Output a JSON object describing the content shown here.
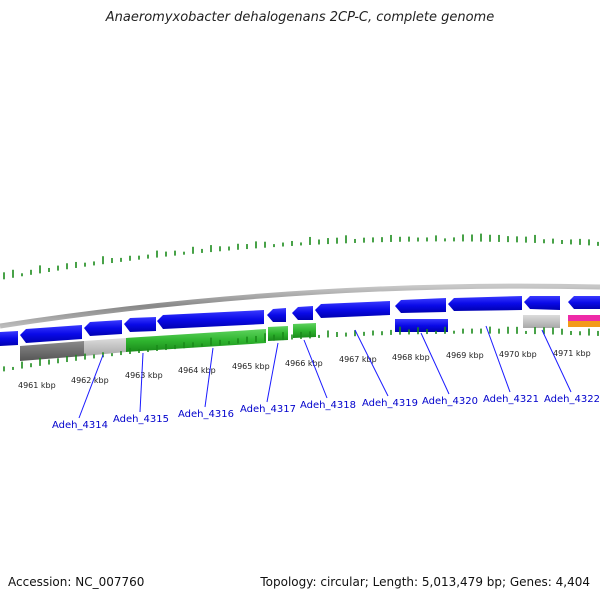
{
  "title": "Anaeromyxobacter dehalogenans 2CP-C, complete genome",
  "accession": "Accession: NC_007760",
  "summary": "Topology: circular; Length: 5,013,479 bp; Genes: 4,404",
  "colors": {
    "cds": "#0a0ae8",
    "gc_skew": "#1a8a1a",
    "backbone": "#888888",
    "label": "#0000cc",
    "green_bar": "#2fb52f",
    "pink_bar": "#ee2aa8",
    "orange_bar": "#f39a1a"
  },
  "kbp_labels": [
    "4961 kbp",
    "4962 kbp",
    "4963 kbp",
    "4964 kbp",
    "4965 kbp",
    "4966 kbp",
    "4967 kbp",
    "4968 kbp",
    "4969 kbp",
    "4970 kbp",
    "4971 kbp"
  ],
  "gene_labels": [
    "Adeh_4314",
    "Adeh_4315",
    "Adeh_4316",
    "Adeh_4317",
    "Adeh_4318",
    "Adeh_4319",
    "Adeh_4320",
    "Adeh_4321",
    "Adeh_4322"
  ]
}
